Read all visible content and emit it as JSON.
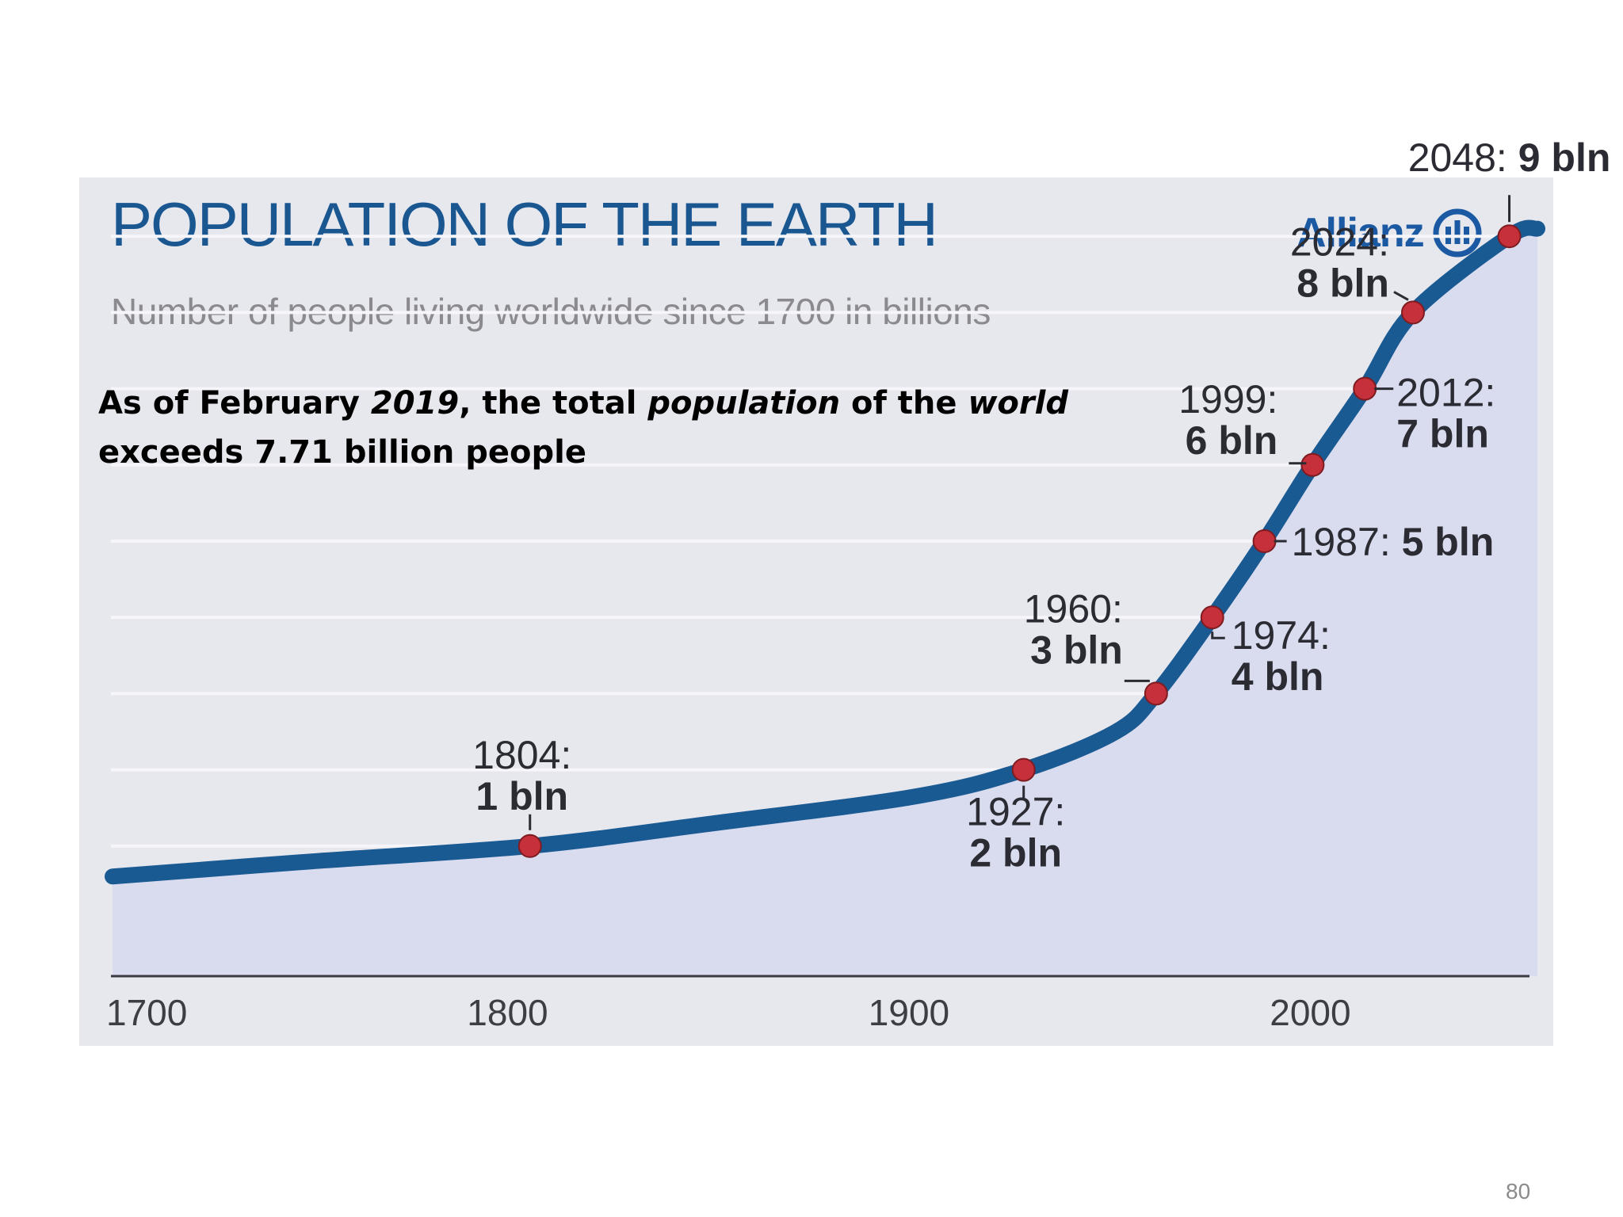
{
  "slide": {
    "page_number": "80",
    "note_parts": [
      {
        "text": "As of February ",
        "italic": false
      },
      {
        "text": "2019",
        "italic": true
      },
      {
        "text": ", the total ",
        "italic": false
      },
      {
        "text": "population",
        "italic": true
      },
      {
        "text": " of the ",
        "italic": false
      },
      {
        "text": "world",
        "italic": true
      },
      {
        "text": " exceeds 7.71 billion people",
        "italic": false
      }
    ]
  },
  "brand": {
    "name": "Allianz",
    "logo_icon": "allianz-logo-icon",
    "color": "#1b5aa3"
  },
  "chart_data": {
    "type": "line",
    "title": "POPULATION OF THE EARTH",
    "subtitle": "Number of people living worldwide since 1700 in billions",
    "xlabel": "",
    "ylabel": "",
    "xlim": [
      1700,
      2055
    ],
    "ylim": [
      0,
      10
    ],
    "x_ticks": [
      "1700",
      "1800",
      "1900",
      "2000"
    ],
    "grid": true,
    "colors": {
      "line": "#1a5a93",
      "marker": "#c5303a",
      "fill": "#d9dbee",
      "title": "#1a5790"
    },
    "series": [
      {
        "x": [
          1700,
          1750,
          1804,
          1850,
          1900,
          1927,
          1950,
          1960,
          1974,
          1987,
          1999,
          2012,
          2024,
          2048,
          2055
        ],
        "y": [
          0.6,
          0.8,
          1.0,
          1.3,
          1.65,
          2.0,
          2.5,
          3.0,
          4.0,
          5.0,
          6.0,
          7.0,
          8.0,
          9.0,
          9.1
        ]
      }
    ],
    "milestones": [
      {
        "year": 1804,
        "value": 1,
        "label_year": "1804:",
        "label_value": "1 bln"
      },
      {
        "year": 1927,
        "value": 2,
        "label_year": "1927:",
        "label_value": "2 bln"
      },
      {
        "year": 1960,
        "value": 3,
        "label_year": "1960:",
        "label_value": "3 bln"
      },
      {
        "year": 1974,
        "value": 4,
        "label_year": "1974:",
        "label_value": "4 bln"
      },
      {
        "year": 1987,
        "value": 5,
        "label_year": "1987:",
        "label_value": "5 bln"
      },
      {
        "year": 1999,
        "value": 6,
        "label_year": "1999:",
        "label_value": "6 bln"
      },
      {
        "year": 2012,
        "value": 7,
        "label_year": "2012:",
        "label_value": "7 bln"
      },
      {
        "year": 2024,
        "value": 8,
        "label_year": "2024:",
        "label_value": "8 bln"
      },
      {
        "year": 2048,
        "value": 9,
        "label_year": "2048:",
        "label_value": "9 bln"
      }
    ]
  }
}
